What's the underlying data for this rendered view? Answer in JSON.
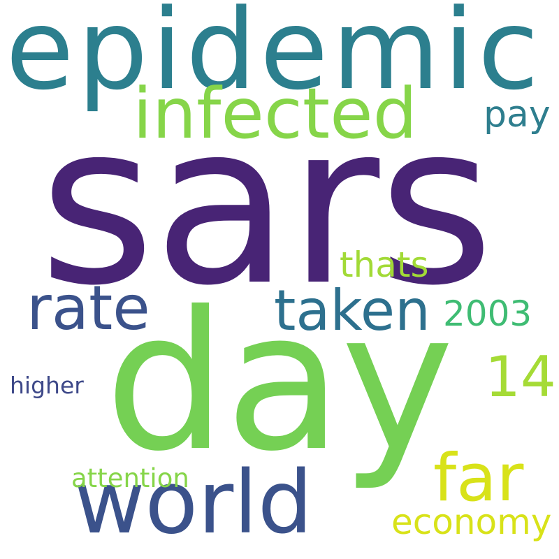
{
  "words": {
    "epidemic": {
      "text": "epidemic",
      "color": "#2c7f8e"
    },
    "infected": {
      "text": "infected",
      "color": "#86d549"
    },
    "pay": {
      "text": "pay",
      "color": "#2e7e8e"
    },
    "sars": {
      "text": "sars",
      "color": "#482475"
    },
    "thats": {
      "text": "thats",
      "color": "#a2da37"
    },
    "rate": {
      "text": "rate",
      "color": "#3b528b"
    },
    "taken": {
      "text": "taken",
      "color": "#2d708e"
    },
    "year2003": {
      "text": "2003",
      "color": "#3fbc73"
    },
    "day": {
      "text": "day",
      "color": "#75d054"
    },
    "n14": {
      "text": "14",
      "color": "#a5db36"
    },
    "higher": {
      "text": "higher",
      "color": "#3e4989"
    },
    "far": {
      "text": "far",
      "color": "#d8e219"
    },
    "world": {
      "text": "world",
      "color": "#3b528b"
    },
    "attention": {
      "text": "attention",
      "color": "#86d549"
    },
    "economy": {
      "text": "economy",
      "color": "#d8e219"
    }
  }
}
